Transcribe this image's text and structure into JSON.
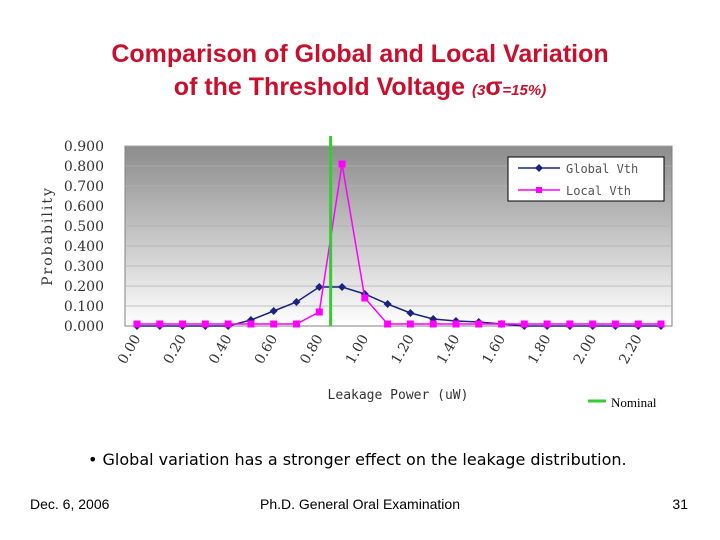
{
  "slide": {
    "title_line1": "Comparison of Global and Local Variation",
    "title_line2": "of the Threshold Voltage",
    "title_paren_open": "(3",
    "title_sigma": "σ",
    "title_paren_rest": "=15%)",
    "bullet": "• Global variation has a stronger effect on the leakage distribution.",
    "footer_left": "Dec. 6, 2006",
    "footer_center": "Ph.D. General Oral Examination",
    "footer_right": "31"
  },
  "colors": {
    "title": "#c8102e",
    "global": "#1a237e",
    "local": "#ff00ff",
    "nominal": "#33cc33"
  },
  "chart_data": {
    "type": "line",
    "xlabel": "Leakage Power (uW)",
    "ylabel": "Probability",
    "ylim": [
      0,
      0.9
    ],
    "y_ticks": [
      "0.000",
      "0.100",
      "0.200",
      "0.300",
      "0.400",
      "0.500",
      "0.600",
      "0.700",
      "0.800",
      "0.900"
    ],
    "x": [
      0.0,
      0.1,
      0.2,
      0.3,
      0.4,
      0.5,
      0.6,
      0.7,
      0.8,
      0.9,
      1.0,
      1.1,
      1.2,
      1.3,
      1.4,
      1.5,
      1.6,
      1.7,
      1.8,
      1.9,
      2.0,
      2.1,
      2.2,
      2.3
    ],
    "x_tick_labels": [
      "0.00",
      "0.20",
      "0.40",
      "0.60",
      "0.80",
      "1.00",
      "1.20",
      "1.40",
      "1.60",
      "1.80",
      "2.00",
      "2.20"
    ],
    "series": [
      {
        "name": "Global Vth",
        "marker": "diamond",
        "values": [
          0.0,
          0.0,
          0.0,
          0.0,
          0.0,
          0.03,
          0.075,
          0.12,
          0.195,
          0.195,
          0.16,
          0.11,
          0.065,
          0.035,
          0.025,
          0.02,
          0.01,
          0.0,
          0.0,
          0.0,
          0.0,
          0.0,
          0.0,
          0.0
        ]
      },
      {
        "name": "Local Vth",
        "marker": "square",
        "values": [
          0.01,
          0.01,
          0.01,
          0.01,
          0.01,
          0.01,
          0.01,
          0.01,
          0.07,
          0.81,
          0.14,
          0.01,
          0.01,
          0.01,
          0.01,
          0.01,
          0.01,
          0.01,
          0.01,
          0.01,
          0.01,
          0.01,
          0.01,
          0.01
        ]
      }
    ],
    "nominal_x": 0.85,
    "nominal_label": "Nominal",
    "legend_position": "top-right",
    "grid": true
  }
}
